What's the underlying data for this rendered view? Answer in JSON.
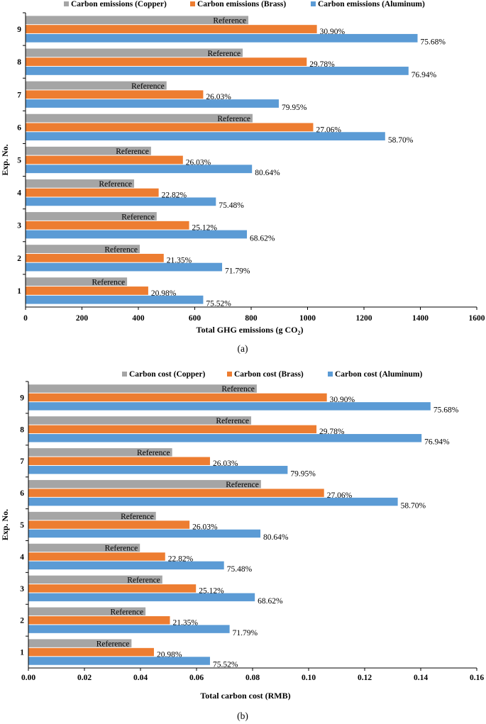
{
  "colors": {
    "copper": "#a5a5a5",
    "brass": "#ed7d31",
    "aluminum": "#5b9bd5"
  },
  "chart_data": [
    {
      "type": "bar",
      "orientation": "horizontal",
      "caption": "(a)",
      "xlabel_main": "Total GHG emissions (g CO",
      "xlabel_sub": "2",
      "xlabel_end": ")",
      "ylabel": "Exp. No.",
      "xlim": [
        0,
        1600
      ],
      "xticks": [
        "0",
        "200",
        "400",
        "600",
        "800",
        "1000",
        "1200",
        "1400",
        "1600"
      ],
      "categories": [
        "1",
        "2",
        "3",
        "4",
        "5",
        "6",
        "7",
        "8",
        "9"
      ],
      "legend_position": "top",
      "series": [
        {
          "name": "Carbon emissions (Copper)",
          "color": "#a5a5a5",
          "values": [
            360,
            405,
            465,
            385,
            445,
            805,
            500,
            770,
            790
          ],
          "labels": [
            "Reference",
            "Reference",
            "Reference",
            "Reference",
            "Reference",
            "Reference",
            "Reference",
            "Reference",
            "Reference"
          ]
        },
        {
          "name": "Carbon emissions (Brass)",
          "color": "#ed7d31",
          "values": [
            435,
            490,
            580,
            472,
            558,
            1020,
            630,
            997,
            1033
          ],
          "labels": [
            "20.98%",
            "21.35%",
            "25.12%",
            "22.82%",
            "26.03%",
            "27.06%",
            "26.03%",
            "29.78%",
            "30.90%"
          ]
        },
        {
          "name": "Carbon emissions (Aluminum)",
          "color": "#5b9bd5",
          "values": [
            630,
            697,
            785,
            675,
            803,
            1275,
            898,
            1358,
            1390
          ],
          "labels": [
            "75.52%",
            "71.79%",
            "68.62%",
            "75.48%",
            "80.64%",
            "58.70%",
            "79.95%",
            "76.94%",
            "75.68%"
          ]
        }
      ]
    },
    {
      "type": "bar",
      "orientation": "horizontal",
      "caption": "(b)",
      "xlabel_main": "Total carbon cost (RMB)",
      "xlabel_sub": "",
      "xlabel_end": "",
      "ylabel": "Exp. No.",
      "xlim": [
        0,
        0.16
      ],
      "xticks": [
        "0.00",
        "0.02",
        "0.04",
        "0.06",
        "0.08",
        "0.10",
        "0.12",
        "0.14",
        "0.16"
      ],
      "categories": [
        "1",
        "2",
        "3",
        "4",
        "5",
        "6",
        "7",
        "8",
        "9"
      ],
      "legend_position": "top",
      "series": [
        {
          "name": "Carbon cost (Copper)",
          "color": "#a5a5a5",
          "values": [
            0.0368,
            0.0418,
            0.0478,
            0.0398,
            0.0455,
            0.083,
            0.0513,
            0.0795,
            0.0815
          ],
          "labels": [
            "Reference",
            "Reference",
            "Reference",
            "Reference",
            "Reference",
            "Reference",
            "Reference",
            "Reference",
            "Reference"
          ]
        },
        {
          "name": "Carbon cost (Brass)",
          "color": "#ed7d31",
          "values": [
            0.0448,
            0.0505,
            0.0598,
            0.0488,
            0.0575,
            0.1055,
            0.0648,
            0.1028,
            0.1065
          ],
          "labels": [
            "20.98%",
            "21.35%",
            "25.12%",
            "22.82%",
            "26.03%",
            "27.06%",
            "26.03%",
            "29.78%",
            "30.90%"
          ]
        },
        {
          "name": "Carbon cost (Aluminum)",
          "color": "#5b9bd5",
          "values": [
            0.0648,
            0.0718,
            0.0808,
            0.0698,
            0.0828,
            0.1318,
            0.0925,
            0.1403,
            0.1435
          ],
          "labels": [
            "75.52%",
            "71.79%",
            "68.62%",
            "75.48%",
            "80.64%",
            "58.70%",
            "79.95%",
            "76.94%",
            "75.68%"
          ]
        }
      ]
    }
  ]
}
